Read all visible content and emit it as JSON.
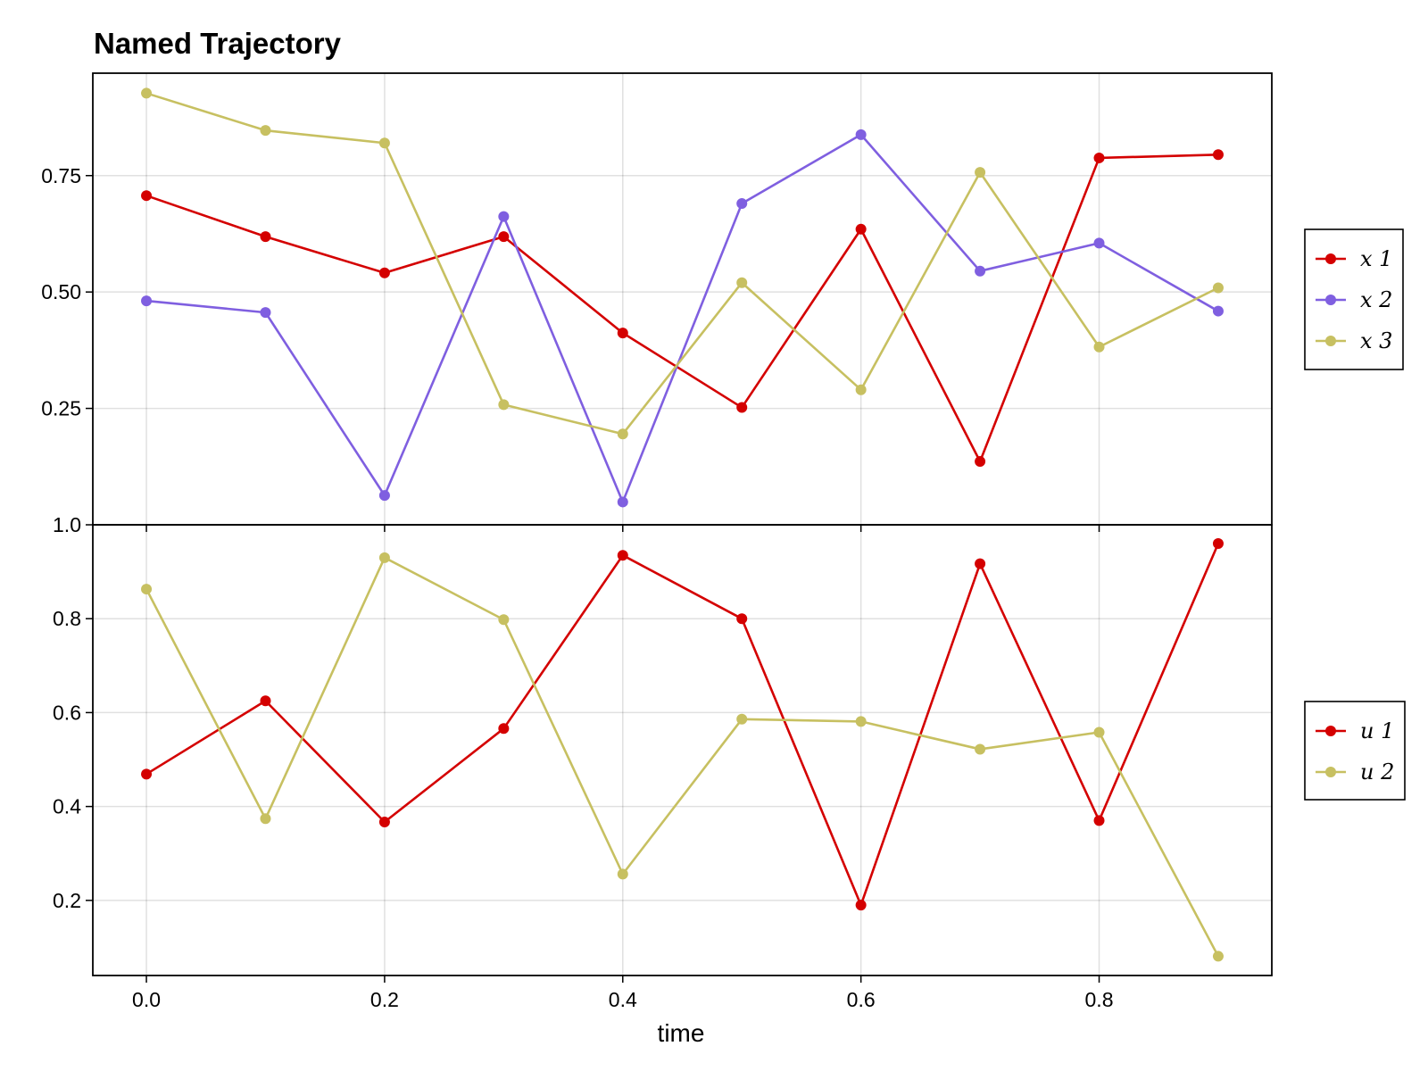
{
  "chart_data": {
    "type": "line",
    "title": "Named Trajectory",
    "xlabel": "time",
    "x": [
      0.0,
      0.1,
      0.2,
      0.3,
      0.4,
      0.5,
      0.6,
      0.7,
      0.8,
      0.9
    ],
    "xlim": [
      -0.045,
      0.945
    ],
    "x_ticks": [
      0.0,
      0.2,
      0.4,
      0.6,
      0.8
    ],
    "x_tick_labels": [
      "0.0",
      "0.2",
      "0.4",
      "0.6",
      "0.8"
    ],
    "grid": true,
    "panels": [
      {
        "ylim": [
          0.0,
          0.97
        ],
        "y_ticks": [
          0.25,
          0.5,
          0.75
        ],
        "y_tick_labels": [
          "0.25",
          "0.50",
          "0.75"
        ],
        "legend_position": "right",
        "series": [
          {
            "name": "x 1",
            "color": "#d40000",
            "values": [
              0.707,
              0.619,
              0.541,
              0.619,
              0.412,
              0.252,
              0.635,
              0.136,
              0.788,
              0.795
            ]
          },
          {
            "name": "x 2",
            "color": "#7f5fe0",
            "values": [
              0.481,
              0.456,
              0.063,
              0.662,
              0.049,
              0.69,
              0.838,
              0.545,
              0.605,
              0.459
            ]
          },
          {
            "name": "x 3",
            "color": "#c7c061",
            "values": [
              0.927,
              0.847,
              0.82,
              0.258,
              0.195,
              0.52,
              0.29,
              0.757,
              0.382,
              0.509
            ]
          }
        ]
      },
      {
        "ylim": [
          0.04,
          1.0
        ],
        "y_ticks": [
          0.2,
          0.4,
          0.6,
          0.8,
          1.0
        ],
        "y_tick_labels": [
          "0.2",
          "0.4",
          "0.6",
          "0.8",
          "1.0"
        ],
        "legend_position": "right",
        "series": [
          {
            "name": "u 1",
            "color": "#d40000",
            "values": [
              0.469,
              0.625,
              0.367,
              0.566,
              0.935,
              0.8,
              0.19,
              0.917,
              0.37,
              0.96
            ]
          },
          {
            "name": "u 2",
            "color": "#c7c061",
            "values": [
              0.863,
              0.374,
              0.93,
              0.798,
              0.256,
              0.586,
              0.581,
              0.522,
              0.558,
              0.081
            ]
          }
        ]
      }
    ]
  }
}
